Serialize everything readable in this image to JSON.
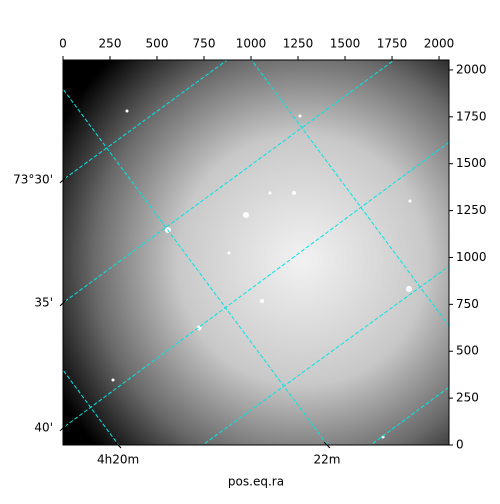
{
  "chart_data": {
    "type": "image",
    "xlabel": "pos.eq.ra",
    "xlim": [
      0,
      2053
    ],
    "ylim": [
      0,
      2053
    ],
    "xticks": [
      0,
      250,
      500,
      750,
      1000,
      1250,
      1500,
      1750,
      2000
    ],
    "yticks": [
      0,
      250,
      500,
      750,
      1000,
      1250,
      1500,
      1750,
      2000
    ],
    "world_yticks": [
      {
        "value": 1413,
        "label": "73°30'"
      },
      {
        "value": 757,
        "label": "35'"
      },
      {
        "value": 91,
        "label": "40'"
      }
    ],
    "world_xticks": [
      {
        "value": 293,
        "label": "4h20m"
      },
      {
        "value": 1404,
        "label": "22m"
      }
    ]
  }
}
